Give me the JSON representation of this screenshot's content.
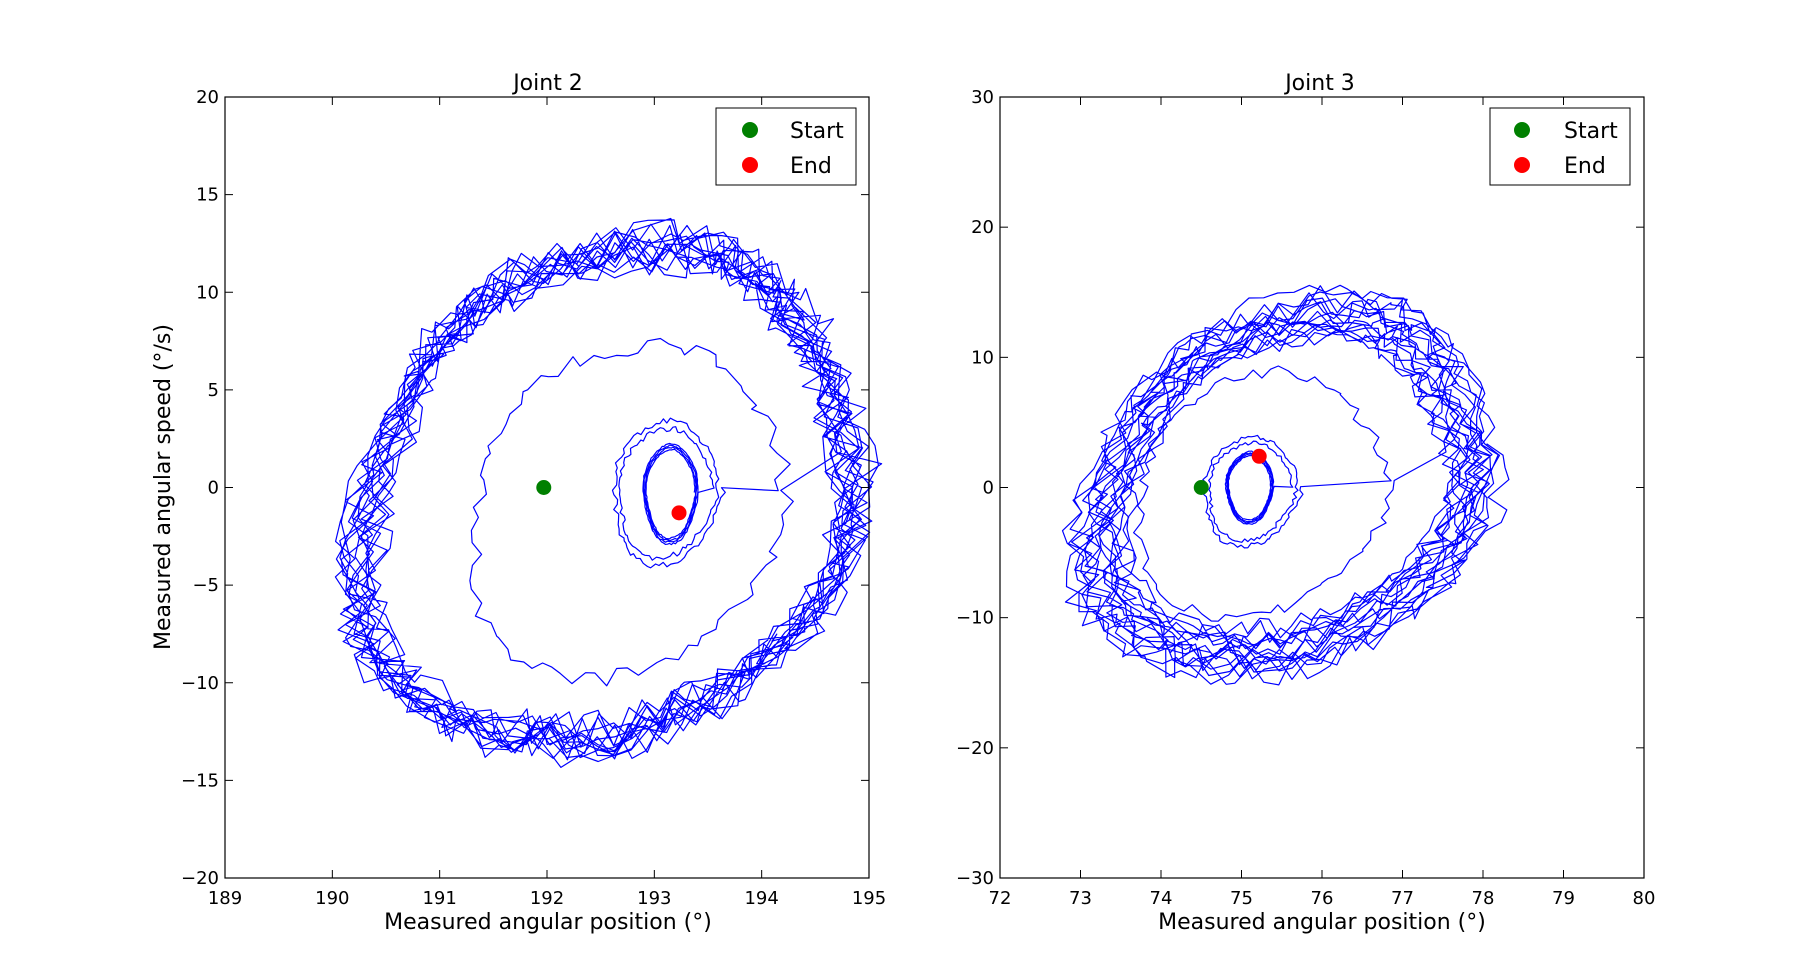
{
  "chart_data": [
    {
      "type": "line",
      "title": "Joint 2",
      "xlabel": "Measured angular position (°)",
      "ylabel": "Measured angular speed (°/s)",
      "xlim": [
        189,
        195
      ],
      "ylim": [
        -20,
        20
      ],
      "xticks": [
        189,
        190,
        191,
        192,
        193,
        194,
        195
      ],
      "yticks": [
        -20,
        -15,
        -10,
        -5,
        0,
        5,
        10,
        15,
        20
      ],
      "xtick_labels": [
        "189",
        "190",
        "191",
        "192",
        "193",
        "194",
        "195"
      ],
      "ytick_labels": [
        "−20",
        "−15",
        "−10",
        "−5",
        "0",
        "5",
        "10",
        "15",
        "20"
      ],
      "series_color": "#0000ff",
      "series": [
        {
          "orbits": [
            {
              "cx": 192.55,
              "cy": -0.3,
              "rx": 2.35,
              "ry": 13.5,
              "tilt": 0.17,
              "turns": 14,
              "shrink": 0.08,
              "noise": 0.09
            },
            {
              "cx": 192.7,
              "cy": -1.2,
              "rx": 1.45,
              "ry": 8.6,
              "tilt": 0.12,
              "turns": 1,
              "shrink": 0.0,
              "noise": 0.06
            },
            {
              "cx": 193.1,
              "cy": -0.2,
              "rx": 0.52,
              "ry": 3.8,
              "tilt": 0.05,
              "turns": 2,
              "shrink": 0.2,
              "noise": 0.05
            },
            {
              "cx": 193.15,
              "cy": -0.3,
              "rx": 0.26,
              "ry": 2.5,
              "tilt": 0.02,
              "turns": 4,
              "shrink": 0.15,
              "noise": 0.02
            }
          ]
        }
      ],
      "markers": [
        {
          "label": "Start",
          "x": 191.97,
          "y": 0.0,
          "color": "#008000"
        },
        {
          "label": "End",
          "x": 193.23,
          "y": -1.3,
          "color": "#ff0000"
        }
      ],
      "legend": {
        "position": "top-right",
        "entries": [
          "Start",
          "End"
        ]
      },
      "grid": false
    },
    {
      "type": "line",
      "title": "Joint 3",
      "xlabel": "Measured angular position (°)",
      "ylabel": "",
      "xlim": [
        72,
        80
      ],
      "ylim": [
        -30,
        30
      ],
      "xticks": [
        72,
        73,
        74,
        75,
        76,
        77,
        78,
        79,
        80
      ],
      "yticks": [
        -30,
        -20,
        -10,
        0,
        10,
        20,
        30
      ],
      "xtick_labels": [
        "72",
        "73",
        "74",
        "75",
        "76",
        "77",
        "78",
        "79",
        "80"
      ],
      "ytick_labels": [
        "−30",
        "−20",
        "−10",
        "0",
        "10",
        "20",
        "30"
      ],
      "series_color": "#0000ff",
      "series": [
        {
          "orbits": [
            {
              "cx": 75.55,
              "cy": 0.2,
              "rx": 2.6,
              "ry": 15.0,
              "tilt": 0.22,
              "turns": 16,
              "shrink": 0.25,
              "noise": 0.08
            },
            {
              "cx": 75.2,
              "cy": -0.5,
              "rx": 1.55,
              "ry": 9.5,
              "tilt": 0.1,
              "turns": 1,
              "shrink": 0.0,
              "noise": 0.06
            },
            {
              "cx": 75.1,
              "cy": -0.2,
              "rx": 0.62,
              "ry": 4.3,
              "tilt": 0.06,
              "turns": 2,
              "shrink": 0.2,
              "noise": 0.05
            },
            {
              "cx": 75.1,
              "cy": 0.0,
              "rx": 0.3,
              "ry": 2.7,
              "tilt": 0.03,
              "turns": 4,
              "shrink": 0.15,
              "noise": 0.02
            }
          ]
        }
      ],
      "markers": [
        {
          "label": "Start",
          "x": 74.5,
          "y": 0.0,
          "color": "#008000"
        },
        {
          "label": "End",
          "x": 75.22,
          "y": 2.4,
          "color": "#ff0000"
        }
      ],
      "legend": {
        "position": "top-right",
        "entries": [
          "Start",
          "End"
        ]
      },
      "grid": false
    }
  ]
}
